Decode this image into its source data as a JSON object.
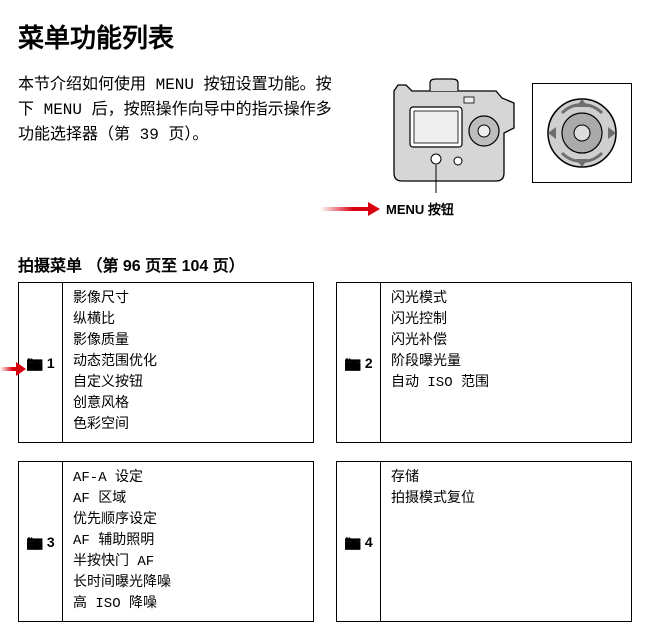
{
  "title": "菜单功能列表",
  "intro": "本节介绍如何使用 MENU 按钮设置功能。按下 MENU 后，按照操作向导中的指示操作多功能选择器（第 39 页）。",
  "callout_label": "MENU 按钮",
  "section_title": "拍摄菜单 （第 96 页至 104 页）",
  "colors": {
    "accent_red": "#d8000f",
    "text": "#000000",
    "bg": "#ffffff",
    "gray_fill": "#cfcfcf",
    "gray_dark": "#9a9a9a"
  },
  "illustration": {
    "camera_desc": "camera-back-line-drawing",
    "dial_desc": "multi-selector-dial"
  },
  "menus": [
    {
      "icon": "camera",
      "num": "1",
      "items": [
        "影像尺寸",
        "纵横比",
        "影像质量",
        "动态范围优化",
        "自定义按钮",
        "创意风格",
        "色彩空间"
      ]
    },
    {
      "icon": "camera",
      "num": "2",
      "items": [
        "闪光模式",
        "闪光控制",
        "闪光补偿",
        "阶段曝光量",
        "自动 ISO 范围"
      ]
    },
    {
      "icon": "camera",
      "num": "3",
      "items": [
        "AF-A 设定",
        "AF 区域",
        "优先顺序设定",
        "AF 辅助照明",
        "半按快门 AF",
        "长时间曝光降噪",
        "高 ISO 降噪"
      ]
    },
    {
      "icon": "camera",
      "num": "4",
      "items": [
        "存储",
        "拍摄模式复位"
      ]
    }
  ]
}
